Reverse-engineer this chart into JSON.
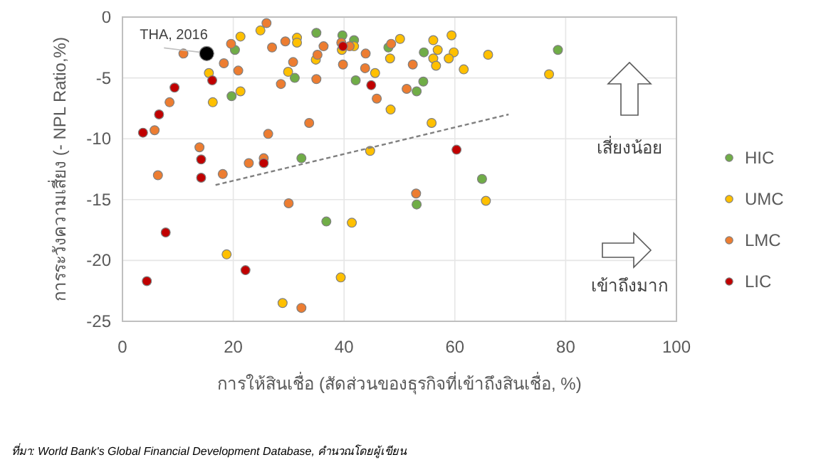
{
  "chart_data": {
    "type": "scatter",
    "xlabel": "การให้สินเชื่อ (สัดส่วนของธุรกิจที่เข้าถึงสินเชื่อ, %)",
    "ylabel": "การระวังความเสี่ยง (- NPL Ratio,%)",
    "xlim": [
      0,
      100
    ],
    "xticks": [
      0,
      20,
      40,
      60,
      80,
      100
    ],
    "ylim": [
      -25,
      0
    ],
    "yticks": [
      -25,
      -20,
      -15,
      -10,
      -5,
      0
    ],
    "grid": true,
    "legend": "right",
    "marker": "circle",
    "annotations": [
      {
        "text": "THA, 2016",
        "x": 15.2,
        "y": -3.0
      },
      "เสี่ยงน้อย",
      "เข้าถึงมาก",
      "ที่มา: World Bank's Global Financial Development Database, คำนวณโดยผู้เขียน"
    ],
    "series": [
      {
        "name": "HIC",
        "color": "#70ad47",
        "x": [
          20.3,
          19.7,
          32.3,
          35.0,
          31.1,
          39.7,
          41.8,
          42.1,
          48.0,
          54.4,
          78.6,
          54.3,
          53.1,
          36.8,
          64.9,
          53.1
        ],
        "values": [
          -2.7,
          -6.5,
          -11.6,
          -1.3,
          -5.0,
          -1.5,
          -1.9,
          -5.2,
          -2.5,
          -2.9,
          -2.7,
          -5.3,
          -6.1,
          -16.8,
          -13.3,
          -15.4
        ]
      },
      {
        "name": "UMC",
        "color": "#ffc000",
        "x": [
          24.9,
          21.3,
          15.6,
          21.3,
          16.3,
          44.7,
          31.5,
          31.5,
          29.9,
          34.9,
          39.6,
          41.8,
          45.6,
          48.4,
          50.1,
          48.3,
          56.1,
          59.4,
          56.9,
          56.1,
          59.8,
          58.9,
          56.6,
          61.6,
          66.0,
          77.0,
          55.8,
          41.4,
          18.8,
          39.4,
          28.9,
          65.6
        ],
        "values": [
          -1.1,
          -1.6,
          -4.6,
          -6.1,
          -7.0,
          -11.0,
          -1.7,
          -2.1,
          -4.5,
          -3.5,
          -2.7,
          -2.4,
          -4.6,
          -7.6,
          -1.8,
          -3.4,
          -1.9,
          -1.5,
          -2.7,
          -3.4,
          -2.9,
          -3.4,
          -4.0,
          -4.3,
          -3.1,
          -4.7,
          -8.7,
          -16.9,
          -19.5,
          -21.4,
          -23.5,
          -15.1
        ]
      },
      {
        "name": "LMC",
        "color": "#ed7d31",
        "x": [
          11.0,
          26.0,
          19.6,
          18.3,
          20.9,
          8.5,
          5.8,
          33.7,
          26.3,
          13.9,
          22.8,
          25.5,
          27.0,
          29.4,
          36.3,
          30.8,
          28.6,
          35.0,
          35.2,
          39.5,
          41.0,
          39.8,
          43.9,
          43.8,
          45.9,
          48.5,
          52.4,
          51.3,
          6.4,
          18.1,
          30.0,
          32.3,
          53.0
        ],
        "values": [
          -3.0,
          -0.5,
          -2.2,
          -3.8,
          -4.4,
          -7.0,
          -9.3,
          -8.7,
          -9.6,
          -10.7,
          -12.0,
          -11.6,
          -2.5,
          -2.0,
          -2.4,
          -3.7,
          -5.5,
          -5.1,
          -3.1,
          -2.1,
          -2.4,
          -3.9,
          -3.0,
          -4.2,
          -6.7,
          -2.2,
          -3.9,
          -5.9,
          -13.0,
          -12.9,
          -15.3,
          -23.9,
          -14.5
        ]
      },
      {
        "name": "LIC",
        "color": "#c00000",
        "x": [
          16.2,
          9.4,
          6.6,
          3.7,
          14.2,
          25.5,
          39.8,
          44.9,
          60.3,
          14.2,
          7.8,
          22.2,
          4.4
        ],
        "values": [
          -5.2,
          -5.8,
          -8.0,
          -9.5,
          -11.7,
          -12.0,
          -2.4,
          -5.6,
          -10.9,
          -13.2,
          -17.7,
          -20.8,
          -21.7
        ]
      },
      {
        "color": "#000000",
        "x": [
          15.2
        ],
        "values": [
          -3.0
        ]
      },
      {
        "type": "line",
        "color": "#808080",
        "line_style": "dashed",
        "marker": "none",
        "x": [
          16.8,
          69.7
        ],
        "values": [
          -13.8,
          -8.0
        ]
      }
    ]
  }
}
